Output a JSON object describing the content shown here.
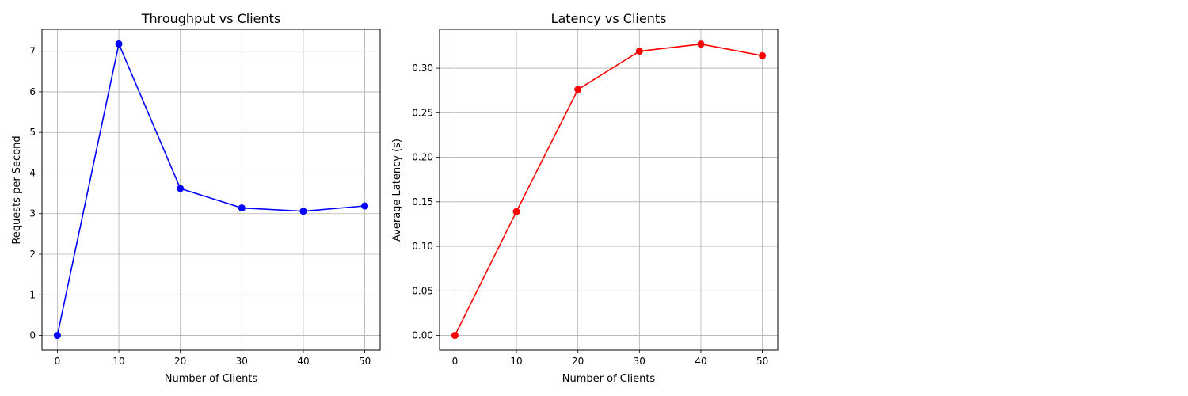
{
  "chart_data": [
    {
      "type": "line",
      "title": "Throughput vs Clients",
      "xlabel": "Number of Clients",
      "ylabel": "Requests per Second",
      "x": [
        0,
        10,
        20,
        30,
        40,
        50
      ],
      "series": [
        {
          "values": [
            0.0,
            7.18,
            3.62,
            3.14,
            3.06,
            3.19
          ],
          "color": "#0000ff",
          "marker": "circle"
        }
      ],
      "xlim": [
        -2.5,
        52.5
      ],
      "ylim": [
        -0.36,
        7.54
      ],
      "xticks": [
        0,
        10,
        20,
        30,
        40,
        50
      ],
      "yticks": [
        0,
        1,
        2,
        3,
        4,
        5,
        6,
        7
      ],
      "ytick_labels": [
        "0",
        "1",
        "2",
        "3",
        "4",
        "5",
        "6",
        "7"
      ],
      "grid": true
    },
    {
      "type": "line",
      "title": "Latency vs Clients",
      "xlabel": "Number of Clients",
      "ylabel": "Average Latency (s)",
      "x": [
        0,
        10,
        20,
        30,
        40,
        50
      ],
      "series": [
        {
          "values": [
            0.0,
            0.139,
            0.276,
            0.319,
            0.327,
            0.314
          ],
          "color": "#ff0000",
          "marker": "circle"
        }
      ],
      "xlim": [
        -2.5,
        52.5
      ],
      "ylim": [
        -0.0164,
        0.3436
      ],
      "xticks": [
        0,
        10,
        20,
        30,
        40,
        50
      ],
      "yticks": [
        0.0,
        0.05,
        0.1,
        0.15,
        0.2,
        0.25,
        0.3
      ],
      "ytick_labels": [
        "0.00",
        "0.05",
        "0.10",
        "0.15",
        "0.20",
        "0.25",
        "0.30"
      ],
      "grid": true
    }
  ]
}
